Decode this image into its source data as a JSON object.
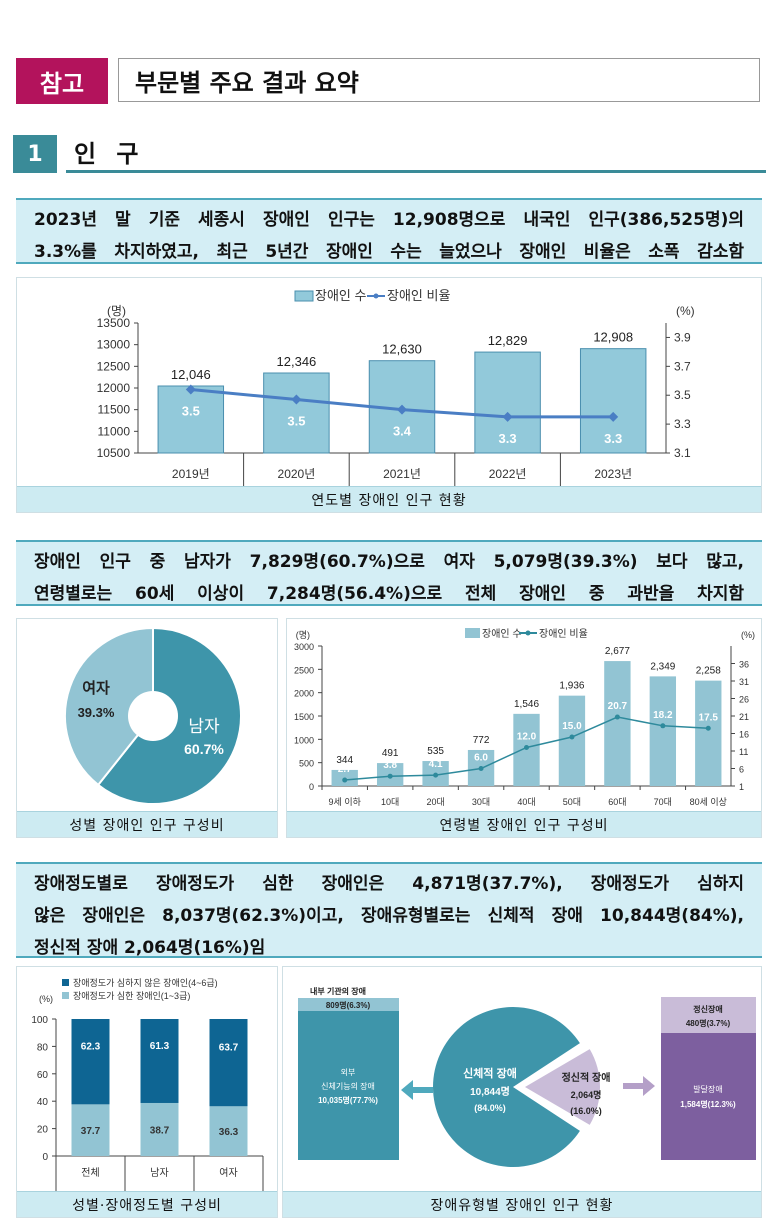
{
  "header": {
    "badge": "참고",
    "title": "부문별 주요 결과 요약"
  },
  "section": {
    "number": "1",
    "title": "인 구"
  },
  "summaries": [
    [
      "2023년 말 기준 세종시 장애인 인구는 12,908명으로 내국인 인구(386,525명)의",
      "3.3%를 차지하였고, 최근 5년간 장애인 수는 늘었으나 장애인 비율은 소폭 감소함"
    ],
    [
      "장애인 인구 중 남자가 7,829명(60.7%)으로 여자 5,079명(39.3%) 보다 많고,",
      "연령별로는 60세 이상이 7,284명(56.4%)으로 전체 장애인 중 과반을 차지함"
    ],
    [
      "장애정도별로 장애정도가 심한 장애인은 4,871명(37.7%), 장애정도가 심하지",
      "않은 장애인은 8,037명(62.3%)이고, 장애유형별로는 신체적 장애 10,844명(84%),",
      "정신적 장애 2,064명(16%)임"
    ]
  ],
  "chart_data": [
    {
      "type": "bar",
      "title": "연도별 장애인 인구 현황",
      "categories": [
        "2019년",
        "2020년",
        "2021년",
        "2022년",
        "2023년"
      ],
      "series": [
        {
          "name": "장애인 수",
          "values": [
            12046,
            12346,
            12630,
            12829,
            12908
          ],
          "labels": [
            "12,046",
            "12,346",
            "12,630",
            "12,829",
            "12,908"
          ],
          "color": "#92c9da"
        },
        {
          "name": "장애인 비율",
          "type": "line",
          "axis": "right",
          "values": [
            3.54,
            3.47,
            3.4,
            3.35,
            3.35
          ],
          "labels": [
            "3.5",
            "3.5",
            "3.4",
            "3.3",
            "3.3"
          ],
          "color": "#4a7ec4"
        }
      ],
      "ylabel": "(명)",
      "ylabel2": "(%)",
      "ylim": [
        10500,
        13500
      ],
      "yticks": [
        10500,
        11000,
        11500,
        12000,
        12500,
        13000,
        13500
      ],
      "ylim2": [
        3.1,
        4.0
      ],
      "yticks2": [
        3.1,
        3.3,
        3.5,
        3.7,
        3.9
      ],
      "legend": "top"
    },
    {
      "type": "pie",
      "title": "성별 장애인 인구 구성비",
      "slices": [
        {
          "name": "남자",
          "value": 60.7,
          "label": "60.7%",
          "color": "#3e95aa"
        },
        {
          "name": "여자",
          "value": 39.3,
          "label": "39.3%",
          "color": "#92c4d3"
        }
      ]
    },
    {
      "type": "bar",
      "title": "연령별 장애인 인구 구성비",
      "categories": [
        "9세 이하",
        "10대",
        "20대",
        "30대",
        "40대",
        "50대",
        "60대",
        "70대",
        "80세 이상"
      ],
      "series": [
        {
          "name": "장애인 수",
          "values": [
            344,
            491,
            535,
            772,
            1546,
            1936,
            2677,
            2349,
            2258
          ],
          "labels": [
            "344",
            "491",
            "535",
            "772",
            "1,546",
            "1,936",
            "2,677",
            "2,349",
            "2,258"
          ],
          "color": "#92c4d3"
        },
        {
          "name": "장애인 비율",
          "type": "line",
          "axis": "right",
          "values": [
            2.7,
            3.8,
            4.1,
            6.0,
            12.0,
            15.0,
            20.7,
            18.2,
            17.5
          ],
          "labels": [
            "2.7",
            "3.8",
            "4.1",
            "6.0",
            "12.0",
            "15.0",
            "20.7",
            "18.2",
            "17.5"
          ],
          "color": "#2e8a9c"
        }
      ],
      "ylabel": "(명)",
      "ylabel2": "(%)",
      "ylim": [
        0,
        3000
      ],
      "yticks": [
        0,
        500,
        1000,
        1500,
        2000,
        2500,
        3000
      ],
      "ylim2": [
        1,
        41
      ],
      "yticks2": [
        1,
        6,
        11,
        16,
        21,
        26,
        31,
        36
      ],
      "legend": "top"
    },
    {
      "type": "bar",
      "stacked": true,
      "title": "성별·장애정도별 구성비",
      "categories": [
        "전체",
        "남자",
        "여자"
      ],
      "series": [
        {
          "name": "장애정도가 심한 장애인(1~3급)",
          "values": [
            37.7,
            38.7,
            36.3
          ],
          "color": "#92c4d3"
        },
        {
          "name": "장애정도가 심하지 않은 장애인(4~6급)",
          "values": [
            62.3,
            61.3,
            63.7
          ],
          "color": "#0e6593"
        }
      ],
      "ylabel": "(%)",
      "ylim": [
        0,
        100
      ],
      "yticks": [
        0,
        20,
        40,
        60,
        80,
        100
      ],
      "legend": "top-left"
    },
    {
      "type": "pie",
      "title": "장애유형별 장애인 인구 현황",
      "slices": [
        {
          "name": "신체적 장애",
          "count": "10,844명",
          "label": "(84.0%)",
          "value": 84.0,
          "color": "#3e95aa"
        },
        {
          "name": "정신적 장애",
          "count": "2,064명",
          "label": "(16.0%)",
          "value": 16.0,
          "color": "#c9bcd8"
        }
      ],
      "physical_breakdown": [
        {
          "name": "내부 기관의 장애",
          "value": "809명(6.3%)",
          "color": "#92c4d3"
        },
        {
          "name": "외부 신체기능의 장애",
          "name_lines": [
            "외부",
            "신체기능의 장애"
          ],
          "value": "10,035명(77.7%)",
          "color": "#3e95aa"
        }
      ],
      "mental_breakdown": [
        {
          "name": "정신장애",
          "value": "480명(3.7%)",
          "color": "#c9bcd8"
        },
        {
          "name": "발달장애",
          "value": "1,584명(12.3%)",
          "color": "#7d5f9f"
        }
      ]
    }
  ]
}
